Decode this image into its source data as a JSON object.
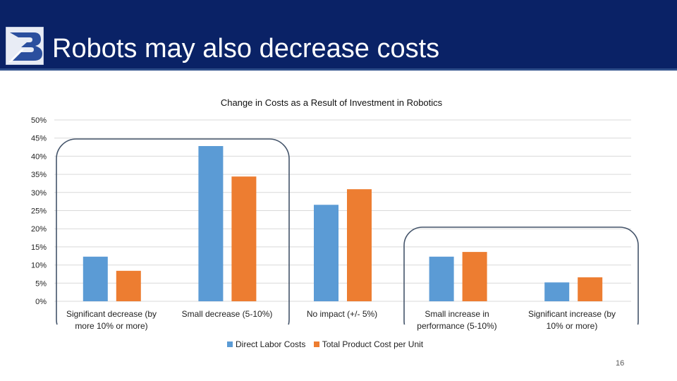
{
  "slide": {
    "title": "Robots may also decrease costs",
    "page_number": "16"
  },
  "colors": {
    "header_bg": "#0a2266",
    "series_blue": "#5b9bd5",
    "series_orange": "#ed7d31",
    "highlight_outline": "#44546a"
  },
  "chart_data": {
    "type": "bar",
    "title": "Change in Costs as a Result of Investment in Robotics",
    "xlabel": "",
    "ylabel": "",
    "ylim": [
      0,
      50
    ],
    "yticks": [
      "0%",
      "5%",
      "10%",
      "15%",
      "20%",
      "25%",
      "30%",
      "35%",
      "40%",
      "45%",
      "50%"
    ],
    "grid": true,
    "legend_position": "bottom",
    "categories": [
      "Significant decrease (by more 10% or more)",
      "Small decrease (5-10%)",
      "No impact (+/- 5%)",
      "Small increase in performance (5-10%)",
      "Significant increase (by 10% or more)"
    ],
    "series": [
      {
        "name": "Direct Labor Costs",
        "color": "#5b9bd5",
        "values": [
          12.3,
          42.8,
          26.6,
          12.3,
          5.2
        ]
      },
      {
        "name": "Total Product Cost per Unit",
        "color": "#ed7d31",
        "values": [
          8.4,
          34.4,
          30.9,
          13.6,
          6.6
        ]
      }
    ]
  }
}
